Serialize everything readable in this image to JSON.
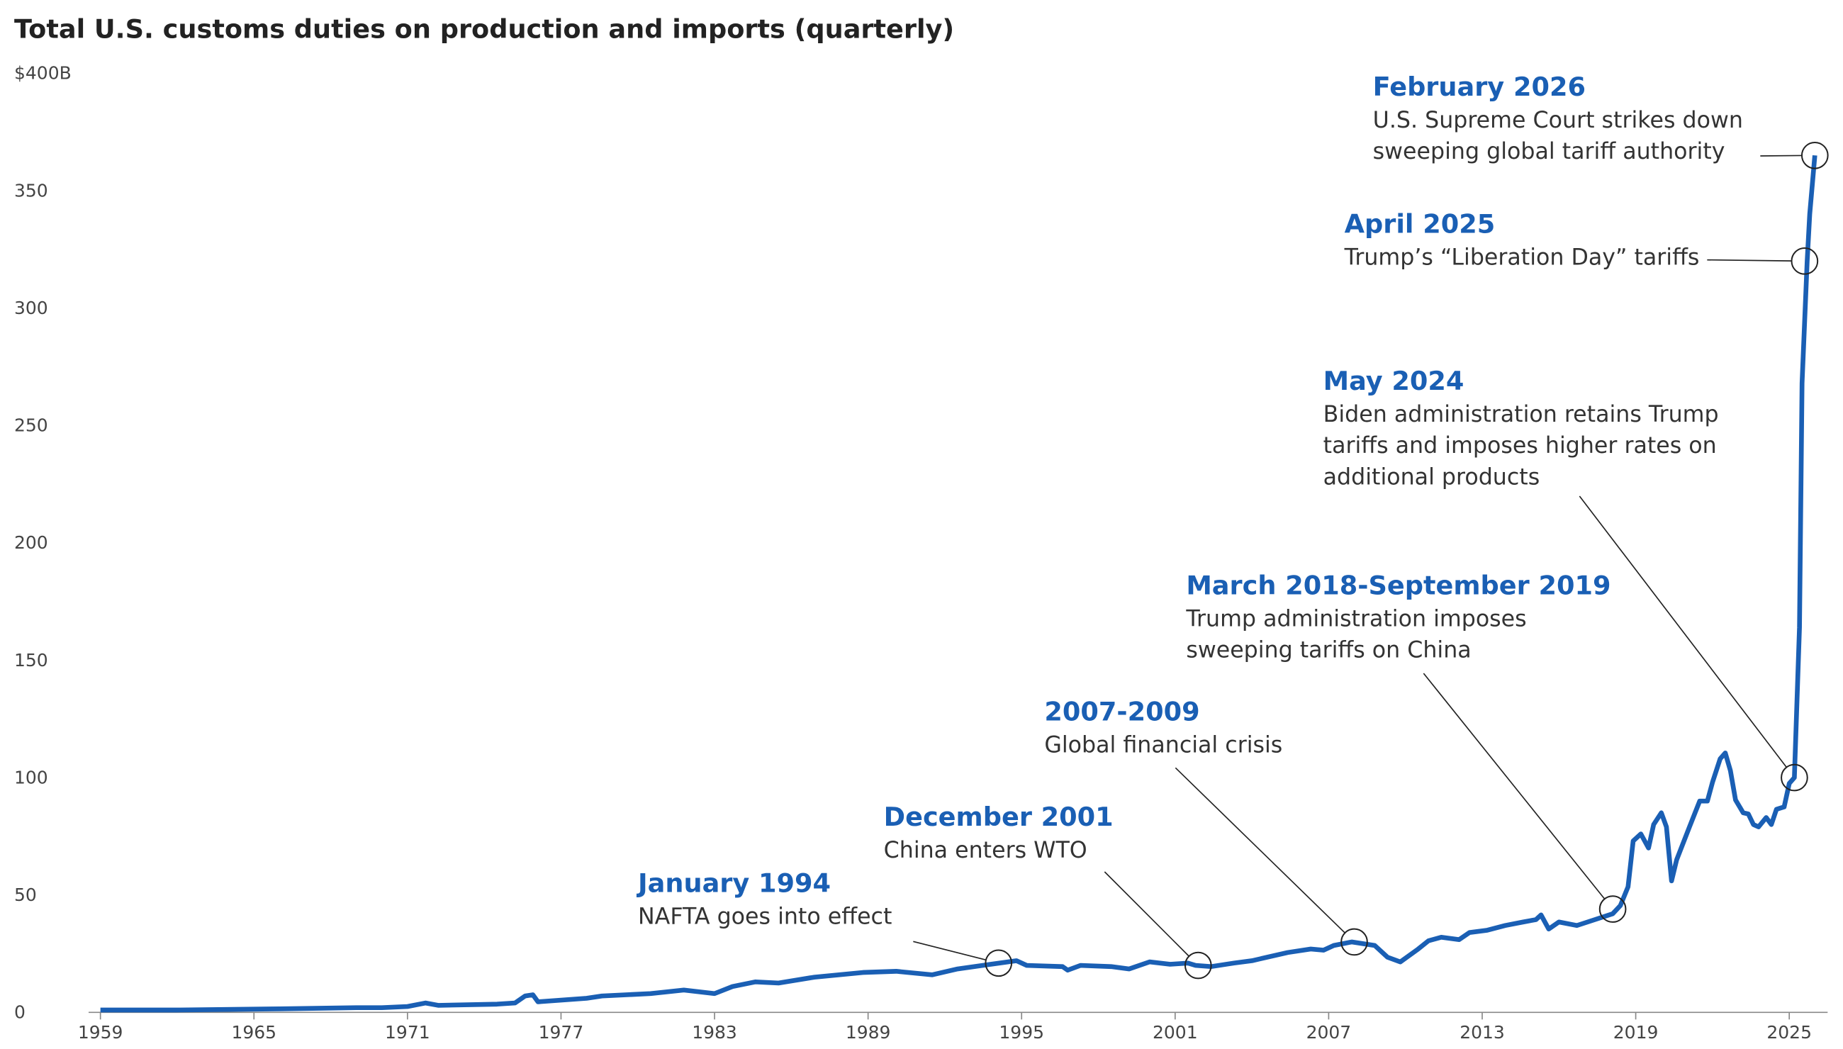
{
  "chart_data": {
    "type": "line",
    "title": "Total U.S. customs duties on production and imports (quarterly)",
    "xlim": [
      1959,
      2026.5
    ],
    "ylim": [
      0,
      400
    ],
    "xticks": [
      1959,
      1965,
      1971,
      1977,
      1983,
      1989,
      1995,
      2001,
      2007,
      2013,
      2019,
      2025
    ],
    "yticks": [
      0,
      50,
      100,
      150,
      200,
      250,
      300,
      350,
      {
        "value": 400,
        "label": "$400B"
      }
    ],
    "series": [
      {
        "color": "#1a5fb4",
        "x": [
          1959,
          1962,
          1966,
          1969,
          1970,
          1971,
          1971.7,
          1972.2,
          1974.5,
          1975.2,
          1975.6,
          1975.9,
          1976.1,
          1978,
          1978.6,
          1980.5,
          1981.8,
          1983,
          1983.7,
          1984.6,
          1985.5,
          1986.9,
          1988.8,
          1990.1,
          1991.5,
          1992.5,
          1993.8,
          1994.8,
          1995.2,
          1996.6,
          1996.8,
          1997.3,
          1998.5,
          1999.2,
          2000,
          2000.8,
          2001.5,
          2001.8,
          2002.4,
          2003.3,
          2004,
          2005.4,
          2006.3,
          2006.8,
          2007.2,
          2007.9,
          2008.8,
          2009.3,
          2009.8,
          2010.5,
          2010.9,
          2011.4,
          2012.1,
          2012.5,
          2013.2,
          2013.9,
          2014.6,
          2015.1,
          2015.3,
          2015.6,
          2016,
          2016.7,
          2017.4,
          2018.1,
          2018.4,
          2018.7,
          2018.9,
          2019.2,
          2019.5,
          2019.7,
          2020,
          2020.2,
          2020.4,
          2020.6,
          2021.1,
          2021.5,
          2021.8,
          2022,
          2022.3,
          2022.5,
          2022.7,
          2022.9,
          2023.2,
          2023.4,
          2023.6,
          2023.8,
          2024.1,
          2024.3,
          2024.5,
          2024.8,
          2025,
          2025.2,
          2025.4,
          2025.5,
          2025.7,
          2025.8,
          2026
        ],
        "values": [
          1,
          1,
          1.5,
          2,
          2,
          2.5,
          4,
          3,
          3.5,
          4,
          7,
          7.5,
          4.5,
          6,
          7,
          8,
          9.5,
          8,
          11,
          13,
          12.5,
          15,
          17,
          17.5,
          16,
          18.5,
          20.5,
          22,
          20,
          19.5,
          18,
          20,
          19.5,
          18.5,
          21.5,
          20.5,
          21,
          20,
          19.5,
          21,
          22,
          25.5,
          27,
          26.5,
          28.5,
          30,
          28.5,
          23.5,
          21.5,
          27,
          30.5,
          32,
          31,
          34,
          35,
          37,
          38.5,
          39.5,
          41.5,
          35.5,
          38.5,
          37,
          39.5,
          42,
          45.5,
          53.5,
          73,
          76,
          70,
          80,
          85,
          79,
          56,
          65,
          79,
          90,
          90,
          98,
          108,
          110.5,
          103,
          90.5,
          85,
          84.5,
          80,
          79,
          83,
          80,
          86.5,
          87.5,
          97.5,
          100,
          164,
          268,
          320,
          340,
          365
        ]
      }
    ],
    "annotations": [
      {
        "title": "January 1994",
        "text": [
          "NAFTA goes into effect"
        ],
        "x": 1994.1,
        "y": 21
      },
      {
        "title": "December 2001",
        "text": [
          "China enters WTO"
        ],
        "x": 2001.9,
        "y": 20
      },
      {
        "title": "2007-2009",
        "text": [
          "Global financial crisis"
        ],
        "x": 2008,
        "y": 30
      },
      {
        "title": "March 2018-September 2019",
        "text": [
          "Trump administration imposes",
          "sweeping tariffs on China"
        ],
        "x": 2018.1,
        "y": 44
      },
      {
        "title": "May 2024",
        "text": [
          "Biden administration retains Trump",
          "tariffs and imposes higher rates on",
          "additional products"
        ],
        "x": 2025.2,
        "y": 100
      },
      {
        "title": "April 2025",
        "text": [
          "Trump’s “Liberation Day” tariffs"
        ],
        "x": 2025.6,
        "y": 320
      },
      {
        "title": "February 2026",
        "text": [
          "U.S. Supreme Court strikes down",
          "sweeping global tariff authority"
        ],
        "x": 2026,
        "y": 365
      }
    ]
  }
}
